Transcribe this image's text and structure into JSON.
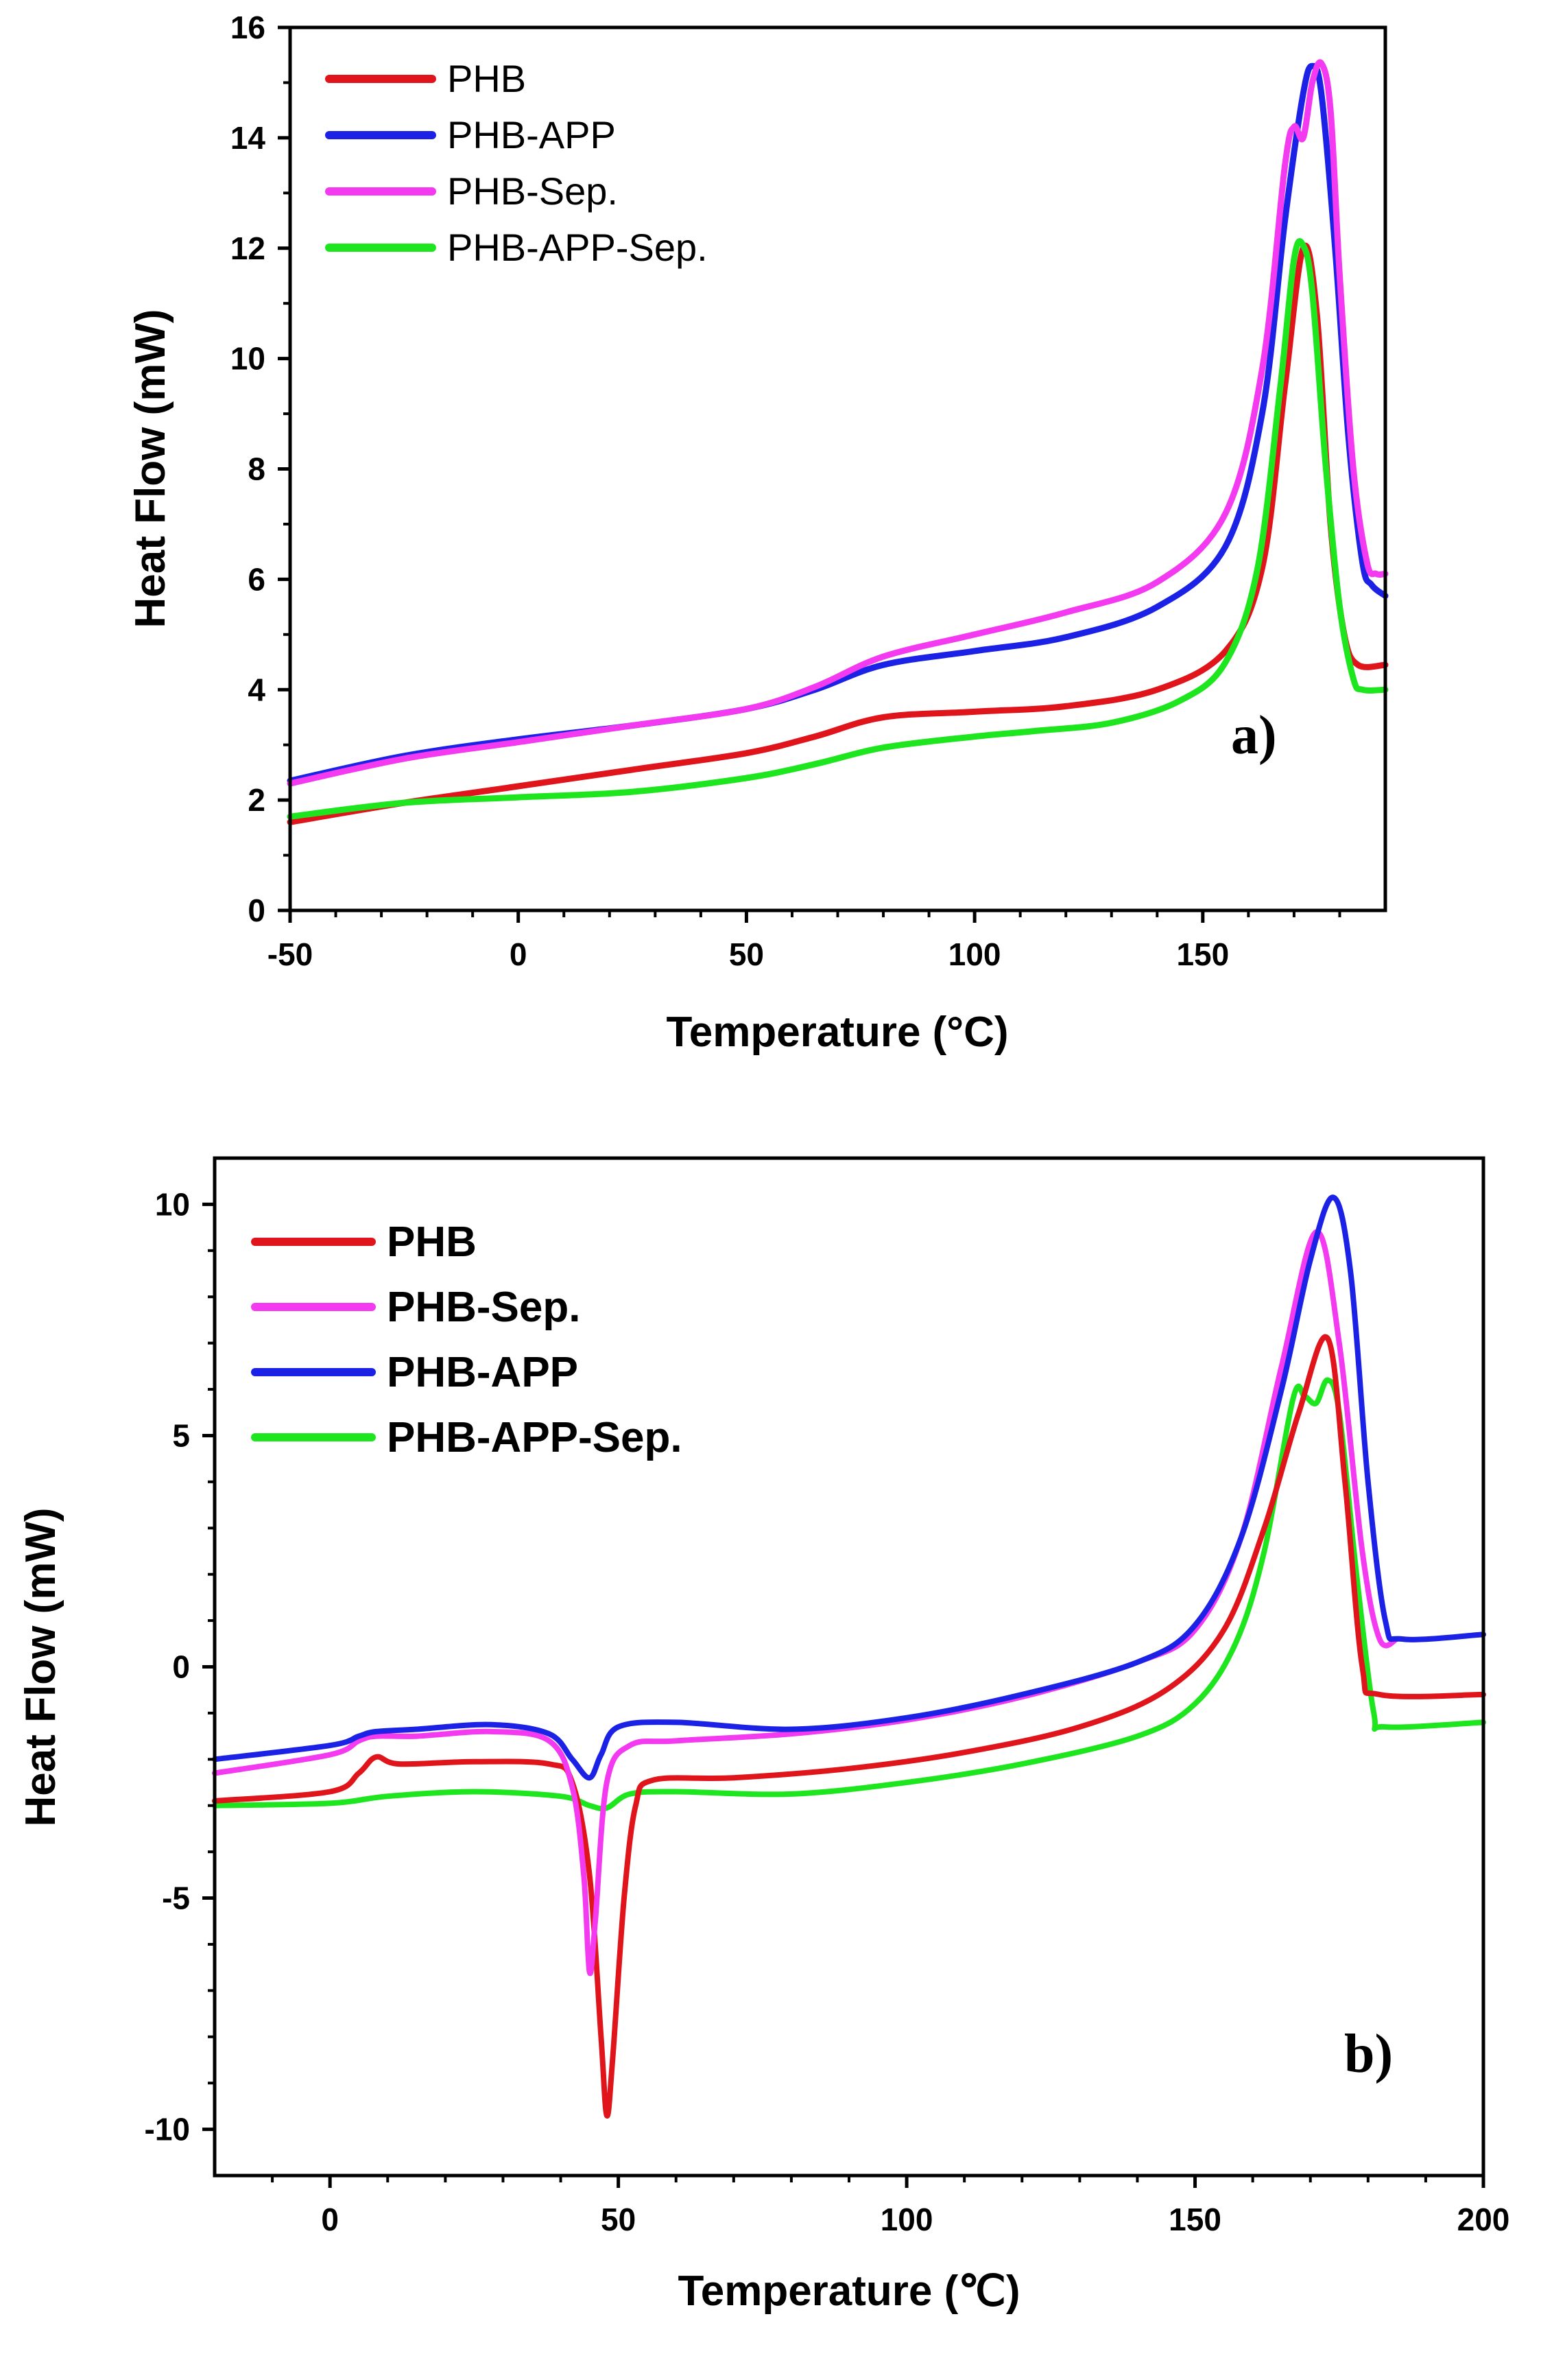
{
  "chart_data": [
    {
      "type": "line",
      "panel_label": "a)",
      "xlabel": "Temperature (°C)",
      "ylabel": "Heat Flow (mW)",
      "xlim": [
        -50,
        190
      ],
      "ylim": [
        0,
        16
      ],
      "x_ticks": [
        -50,
        0,
        50,
        100,
        150
      ],
      "x_tick_labels": [
        "-50",
        "0",
        "50",
        "100",
        "150"
      ],
      "y_ticks": [
        0,
        2,
        4,
        6,
        8,
        10,
        12,
        14,
        16
      ],
      "y_tick_labels": [
        "0",
        "2",
        "4",
        "6",
        "8",
        "10",
        "12",
        "14",
        "16"
      ],
      "legend_position": "top-left",
      "series": [
        {
          "name": "PHB",
          "color": "#e0151b",
          "points": [
            [
              -50,
              1.6
            ],
            [
              -25,
              1.95
            ],
            [
              0,
              2.25
            ],
            [
              25,
              2.55
            ],
            [
              50,
              2.85
            ],
            [
              65,
              3.15
            ],
            [
              80,
              3.5
            ],
            [
              100,
              3.6
            ],
            [
              120,
              3.7
            ],
            [
              140,
              4.0
            ],
            [
              155,
              4.7
            ],
            [
              163,
              6.2
            ],
            [
              168,
              9.5
            ],
            [
              172,
              12.0
            ],
            [
              175,
              10.8
            ],
            [
              178,
              7.0
            ],
            [
              181,
              5.0
            ],
            [
              184,
              4.45
            ],
            [
              190,
              4.45
            ]
          ]
        },
        {
          "name": "PHB-APP",
          "color": "#1b22e6",
          "points": [
            [
              -50,
              2.35
            ],
            [
              -25,
              2.8
            ],
            [
              0,
              3.1
            ],
            [
              25,
              3.35
            ],
            [
              50,
              3.65
            ],
            [
              65,
              4.0
            ],
            [
              80,
              4.45
            ],
            [
              100,
              4.7
            ],
            [
              120,
              4.95
            ],
            [
              140,
              5.5
            ],
            [
              155,
              6.6
            ],
            [
              163,
              9.0
            ],
            [
              168,
              12.5
            ],
            [
              172,
              14.8
            ],
            [
              174,
              15.3
            ],
            [
              176,
              14.8
            ],
            [
              179,
              12.0
            ],
            [
              182,
              8.5
            ],
            [
              185,
              6.3
            ],
            [
              187,
              5.9
            ],
            [
              190,
              5.7
            ]
          ]
        },
        {
          "name": "PHB-Sep.",
          "color": "#f33af0",
          "points": [
            [
              -50,
              2.3
            ],
            [
              -25,
              2.75
            ],
            [
              0,
              3.05
            ],
            [
              25,
              3.35
            ],
            [
              50,
              3.65
            ],
            [
              65,
              4.05
            ],
            [
              80,
              4.6
            ],
            [
              100,
              5.0
            ],
            [
              120,
              5.4
            ],
            [
              140,
              5.95
            ],
            [
              155,
              7.2
            ],
            [
              163,
              9.8
            ],
            [
              168,
              13.5
            ],
            [
              170,
              14.2
            ],
            [
              172,
              14.0
            ],
            [
              174,
              15.0
            ],
            [
              176,
              15.35
            ],
            [
              178,
              14.5
            ],
            [
              180,
              11.5
            ],
            [
              183,
              8.0
            ],
            [
              186,
              6.3
            ],
            [
              188,
              6.1
            ],
            [
              190,
              6.1
            ]
          ]
        },
        {
          "name": "PHB-APP-Sep.",
          "color": "#1ee61e",
          "points": [
            [
              -50,
              1.7
            ],
            [
              -25,
              1.95
            ],
            [
              0,
              2.05
            ],
            [
              25,
              2.15
            ],
            [
              50,
              2.4
            ],
            [
              65,
              2.65
            ],
            [
              80,
              2.95
            ],
            [
              100,
              3.15
            ],
            [
              113,
              3.25
            ],
            [
              130,
              3.4
            ],
            [
              145,
              3.8
            ],
            [
              155,
              4.5
            ],
            [
              162,
              6.2
            ],
            [
              167,
              9.5
            ],
            [
              170,
              11.8
            ],
            [
              172,
              12.05
            ],
            [
              174,
              11.2
            ],
            [
              177,
              8.0
            ],
            [
              180,
              5.5
            ],
            [
              183,
              4.2
            ],
            [
              185,
              4.0
            ],
            [
              190,
              4.0
            ]
          ]
        }
      ]
    },
    {
      "type": "line",
      "panel_label": "b)",
      "xlabel": "Temperature (℃)",
      "ylabel": "Heat Flow (mW)",
      "xlim": [
        -20,
        200
      ],
      "ylim": [
        -11,
        11
      ],
      "x_ticks": [
        0,
        50,
        100,
        150,
        200
      ],
      "x_tick_labels": [
        "0",
        "50",
        "100",
        "150",
        "200"
      ],
      "y_ticks": [
        10,
        5,
        0,
        -5,
        -10
      ],
      "y_tick_labels": [
        "10",
        "5",
        "0",
        "-5",
        "-10"
      ],
      "legend_position": "top-left",
      "series": [
        {
          "name": "PHB",
          "color": "#e0151b",
          "points": [
            [
              -20,
              -2.9
            ],
            [
              0,
              -2.7
            ],
            [
              5,
              -2.3
            ],
            [
              8,
              -1.95
            ],
            [
              12,
              -2.1
            ],
            [
              25,
              -2.05
            ],
            [
              38,
              -2.1
            ],
            [
              42,
              -2.5
            ],
            [
              45,
              -4.5
            ],
            [
              47,
              -8.0
            ],
            [
              48,
              -9.7
            ],
            [
              49,
              -8.5
            ],
            [
              51,
              -5.0
            ],
            [
              53,
              -3.0
            ],
            [
              56,
              -2.45
            ],
            [
              70,
              -2.4
            ],
            [
              90,
              -2.2
            ],
            [
              110,
              -1.85
            ],
            [
              130,
              -1.3
            ],
            [
              145,
              -0.5
            ],
            [
              155,
              0.8
            ],
            [
              162,
              3.0
            ],
            [
              168,
              5.5
            ],
            [
              173,
              7.1
            ],
            [
              176,
              4.0
            ],
            [
              179,
              0.0
            ],
            [
              182,
              -0.6
            ],
            [
              200,
              -0.6
            ]
          ]
        },
        {
          "name": "PHB-Sep.",
          "color": "#f33af0",
          "points": [
            [
              -20,
              -2.3
            ],
            [
              0,
              -1.9
            ],
            [
              5,
              -1.6
            ],
            [
              8,
              -1.5
            ],
            [
              15,
              -1.5
            ],
            [
              28,
              -1.4
            ],
            [
              38,
              -1.6
            ],
            [
              42,
              -2.6
            ],
            [
              44,
              -4.5
            ],
            [
              45,
              -6.6
            ],
            [
              46,
              -5.5
            ],
            [
              48,
              -2.5
            ],
            [
              52,
              -1.7
            ],
            [
              60,
              -1.6
            ],
            [
              80,
              -1.45
            ],
            [
              100,
              -1.15
            ],
            [
              120,
              -0.65
            ],
            [
              140,
              0.1
            ],
            [
              150,
              0.8
            ],
            [
              158,
              2.8
            ],
            [
              165,
              6.5
            ],
            [
              171,
              9.4
            ],
            [
              175,
              7.0
            ],
            [
              179,
              2.5
            ],
            [
              182,
              0.6
            ],
            [
              185,
              0.6
            ]
          ]
        },
        {
          "name": "PHB-APP",
          "color": "#1b22e6",
          "points": [
            [
              -20,
              -2.0
            ],
            [
              0,
              -1.7
            ],
            [
              5,
              -1.5
            ],
            [
              8,
              -1.4
            ],
            [
              15,
              -1.35
            ],
            [
              28,
              -1.25
            ],
            [
              38,
              -1.45
            ],
            [
              42,
              -2.0
            ],
            [
              45,
              -2.4
            ],
            [
              47,
              -1.9
            ],
            [
              50,
              -1.3
            ],
            [
              60,
              -1.2
            ],
            [
              80,
              -1.35
            ],
            [
              100,
              -1.1
            ],
            [
              120,
              -0.6
            ],
            [
              140,
              0.1
            ],
            [
              150,
              0.9
            ],
            [
              158,
              2.8
            ],
            [
              165,
              6.0
            ],
            [
              170,
              8.8
            ],
            [
              174,
              10.15
            ],
            [
              177,
              8.5
            ],
            [
              180,
              4.0
            ],
            [
              183,
              1.0
            ],
            [
              186,
              0.6
            ],
            [
              200,
              0.7
            ]
          ]
        },
        {
          "name": "PHB-APP-Sep.",
          "color": "#1ee61e",
          "points": [
            [
              -20,
              -3.0
            ],
            [
              0,
              -2.95
            ],
            [
              10,
              -2.8
            ],
            [
              25,
              -2.7
            ],
            [
              40,
              -2.8
            ],
            [
              45,
              -3.0
            ],
            [
              48,
              -3.05
            ],
            [
              52,
              -2.75
            ],
            [
              60,
              -2.7
            ],
            [
              80,
              -2.75
            ],
            [
              100,
              -2.5
            ],
            [
              120,
              -2.1
            ],
            [
              140,
              -1.5
            ],
            [
              150,
              -0.8
            ],
            [
              157,
              0.5
            ],
            [
              162,
              2.5
            ],
            [
              167,
              5.8
            ],
            [
              169,
              5.85
            ],
            [
              171,
              5.7
            ],
            [
              173,
              6.2
            ],
            [
              175,
              5.5
            ],
            [
              178,
              2.0
            ],
            [
              181,
              -1.0
            ],
            [
              183,
              -1.3
            ],
            [
              200,
              -1.2
            ]
          ]
        }
      ]
    }
  ]
}
